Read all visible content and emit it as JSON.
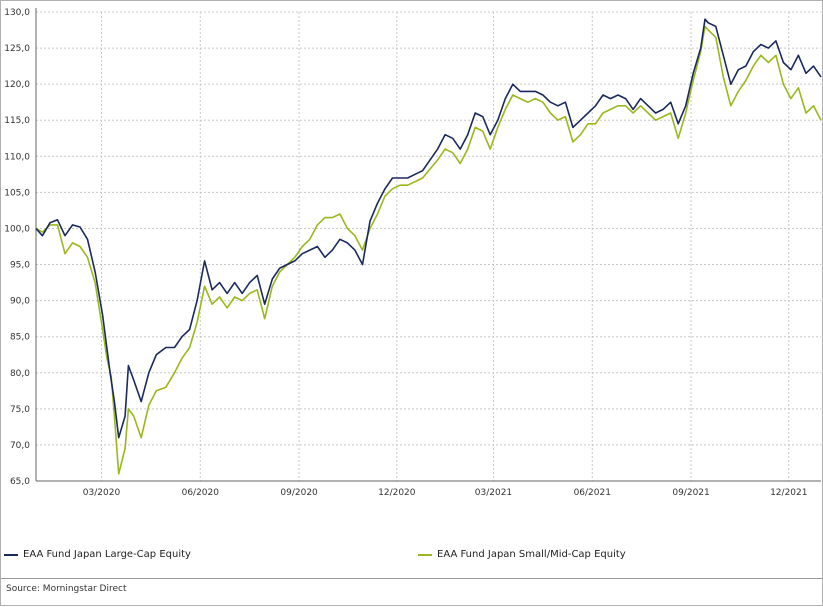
{
  "chart_data": {
    "type": "line",
    "title": "",
    "xlabel": "",
    "ylabel": "",
    "ylim": [
      65,
      130
    ],
    "y_ticks": [
      "65,0",
      "70,0",
      "75,0",
      "80,0",
      "85,0",
      "90,0",
      "95,0",
      "100,0",
      "105,0",
      "110,0",
      "115,0",
      "120,0",
      "125,0",
      "130,0"
    ],
    "x_ticks": [
      "03/2020",
      "06/2020",
      "09/2020",
      "12/2020",
      "03/2021",
      "06/2021",
      "09/2021",
      "12/2021"
    ],
    "x_tick_positions": [
      "2020-03",
      "2020-06",
      "2020-09",
      "2020-12",
      "2021-03",
      "2021-06",
      "2021-09",
      "2021-12"
    ],
    "x_start": "2019-12-31",
    "x_end": "2021-12-31",
    "grid": true,
    "series": [
      {
        "name": "EAA Fund Japan Large-Cap Equity",
        "color": "#1a2a5e",
        "points": [
          [
            "2019-12-31",
            100.0
          ],
          [
            "2020-01-06",
            99.0
          ],
          [
            "2020-01-13",
            100.8
          ],
          [
            "2020-01-20",
            101.2
          ],
          [
            "2020-01-27",
            99.0
          ],
          [
            "2020-02-03",
            100.5
          ],
          [
            "2020-02-10",
            100.2
          ],
          [
            "2020-02-17",
            98.5
          ],
          [
            "2020-02-24",
            94.0
          ],
          [
            "2020-03-02",
            88.0
          ],
          [
            "2020-03-09",
            80.0
          ],
          [
            "2020-03-13",
            76.0
          ],
          [
            "2020-03-17",
            71.0
          ],
          [
            "2020-03-23",
            74.0
          ],
          [
            "2020-03-26",
            81.0
          ],
          [
            "2020-03-31",
            79.0
          ],
          [
            "2020-04-07",
            76.0
          ],
          [
            "2020-04-14",
            80.0
          ],
          [
            "2020-04-21",
            82.5
          ],
          [
            "2020-04-30",
            83.5
          ],
          [
            "2020-05-08",
            83.5
          ],
          [
            "2020-05-15",
            85.0
          ],
          [
            "2020-05-22",
            86.0
          ],
          [
            "2020-05-29",
            90.0
          ],
          [
            "2020-06-05",
            95.5
          ],
          [
            "2020-06-12",
            91.5
          ],
          [
            "2020-06-19",
            92.5
          ],
          [
            "2020-06-26",
            91.0
          ],
          [
            "2020-07-03",
            92.5
          ],
          [
            "2020-07-10",
            91.0
          ],
          [
            "2020-07-17",
            92.5
          ],
          [
            "2020-07-24",
            93.5
          ],
          [
            "2020-07-31",
            89.5
          ],
          [
            "2020-08-07",
            93.0
          ],
          [
            "2020-08-14",
            94.5
          ],
          [
            "2020-08-21",
            95.0
          ],
          [
            "2020-08-28",
            95.5
          ],
          [
            "2020-09-04",
            96.5
          ],
          [
            "2020-09-11",
            97.0
          ],
          [
            "2020-09-18",
            97.5
          ],
          [
            "2020-09-25",
            96.0
          ],
          [
            "2020-10-02",
            97.0
          ],
          [
            "2020-10-09",
            98.5
          ],
          [
            "2020-10-16",
            98.0
          ],
          [
            "2020-10-23",
            97.0
          ],
          [
            "2020-10-30",
            95.0
          ],
          [
            "2020-11-06",
            101.0
          ],
          [
            "2020-11-13",
            103.5
          ],
          [
            "2020-11-20",
            105.5
          ],
          [
            "2020-11-27",
            107.0
          ],
          [
            "2020-12-04",
            107.0
          ],
          [
            "2020-12-11",
            107.0
          ],
          [
            "2020-12-18",
            107.5
          ],
          [
            "2020-12-25",
            108.0
          ],
          [
            "2021-01-08",
            111.0
          ],
          [
            "2021-01-15",
            113.0
          ],
          [
            "2021-01-22",
            112.5
          ],
          [
            "2021-01-29",
            111.0
          ],
          [
            "2021-02-05",
            113.0
          ],
          [
            "2021-02-12",
            116.0
          ],
          [
            "2021-02-19",
            115.5
          ],
          [
            "2021-02-26",
            113.0
          ],
          [
            "2021-03-05",
            115.0
          ],
          [
            "2021-03-12",
            118.0
          ],
          [
            "2021-03-19",
            120.0
          ],
          [
            "2021-03-26",
            119.0
          ],
          [
            "2021-04-02",
            119.0
          ],
          [
            "2021-04-09",
            119.0
          ],
          [
            "2021-04-16",
            118.5
          ],
          [
            "2021-04-23",
            117.5
          ],
          [
            "2021-04-30",
            117.0
          ],
          [
            "2021-05-07",
            117.5
          ],
          [
            "2021-05-14",
            114.0
          ],
          [
            "2021-05-21",
            115.0
          ],
          [
            "2021-05-28",
            116.0
          ],
          [
            "2021-06-04",
            117.0
          ],
          [
            "2021-06-11",
            118.5
          ],
          [
            "2021-06-18",
            118.0
          ],
          [
            "2021-06-25",
            118.5
          ],
          [
            "2021-07-02",
            118.0
          ],
          [
            "2021-07-09",
            116.5
          ],
          [
            "2021-07-16",
            118.0
          ],
          [
            "2021-07-23",
            117.0
          ],
          [
            "2021-07-30",
            116.0
          ],
          [
            "2021-08-06",
            116.5
          ],
          [
            "2021-08-13",
            117.5
          ],
          [
            "2021-08-20",
            114.5
          ],
          [
            "2021-08-27",
            117.0
          ],
          [
            "2021-09-03",
            121.5
          ],
          [
            "2021-09-10",
            125.0
          ],
          [
            "2021-09-14",
            129.0
          ],
          [
            "2021-09-17",
            128.5
          ],
          [
            "2021-09-24",
            128.0
          ],
          [
            "2021-10-01",
            124.0
          ],
          [
            "2021-10-08",
            120.0
          ],
          [
            "2021-10-15",
            122.0
          ],
          [
            "2021-10-22",
            122.5
          ],
          [
            "2021-10-29",
            124.5
          ],
          [
            "2021-11-05",
            125.5
          ],
          [
            "2021-11-12",
            125.0
          ],
          [
            "2021-11-19",
            126.0
          ],
          [
            "2021-11-26",
            123.0
          ],
          [
            "2021-12-03",
            122.0
          ],
          [
            "2021-12-10",
            124.0
          ],
          [
            "2021-12-17",
            121.5
          ],
          [
            "2021-12-24",
            122.5
          ],
          [
            "2021-12-31",
            121.0
          ]
        ]
      },
      {
        "name": "EAA Fund Japan Small/Mid-Cap Equity",
        "color": "#9ab81c",
        "points": [
          [
            "2019-12-31",
            100.0
          ],
          [
            "2020-01-06",
            99.5
          ],
          [
            "2020-01-13",
            100.5
          ],
          [
            "2020-01-20",
            100.5
          ],
          [
            "2020-01-27",
            96.5
          ],
          [
            "2020-02-03",
            98.0
          ],
          [
            "2020-02-10",
            97.5
          ],
          [
            "2020-02-17",
            96.0
          ],
          [
            "2020-02-24",
            92.5
          ],
          [
            "2020-03-02",
            86.0
          ],
          [
            "2020-03-06",
            82.0
          ],
          [
            "2020-03-10",
            79.5
          ],
          [
            "2020-03-13",
            74.0
          ],
          [
            "2020-03-17",
            66.0
          ],
          [
            "2020-03-23",
            69.5
          ],
          [
            "2020-03-26",
            75.0
          ],
          [
            "2020-03-31",
            74.0
          ],
          [
            "2020-04-07",
            71.0
          ],
          [
            "2020-04-14",
            75.5
          ],
          [
            "2020-04-21",
            77.5
          ],
          [
            "2020-04-30",
            78.0
          ],
          [
            "2020-05-08",
            80.0
          ],
          [
            "2020-05-15",
            82.0
          ],
          [
            "2020-05-22",
            83.5
          ],
          [
            "2020-05-29",
            87.0
          ],
          [
            "2020-06-05",
            92.0
          ],
          [
            "2020-06-12",
            89.5
          ],
          [
            "2020-06-19",
            90.5
          ],
          [
            "2020-06-26",
            89.0
          ],
          [
            "2020-07-03",
            90.5
          ],
          [
            "2020-07-10",
            90.0
          ],
          [
            "2020-07-17",
            91.0
          ],
          [
            "2020-07-24",
            91.5
          ],
          [
            "2020-07-31",
            87.5
          ],
          [
            "2020-08-07",
            92.0
          ],
          [
            "2020-08-14",
            94.0
          ],
          [
            "2020-08-21",
            95.0
          ],
          [
            "2020-08-28",
            96.0
          ],
          [
            "2020-09-04",
            97.5
          ],
          [
            "2020-09-11",
            98.5
          ],
          [
            "2020-09-18",
            100.5
          ],
          [
            "2020-09-25",
            101.5
          ],
          [
            "2020-10-02",
            101.5
          ],
          [
            "2020-10-09",
            102.0
          ],
          [
            "2020-10-16",
            100.0
          ],
          [
            "2020-10-23",
            99.0
          ],
          [
            "2020-10-30",
            97.0
          ],
          [
            "2020-11-06",
            100.0
          ],
          [
            "2020-11-13",
            102.0
          ],
          [
            "2020-11-20",
            104.5
          ],
          [
            "2020-11-27",
            105.5
          ],
          [
            "2020-12-04",
            106.0
          ],
          [
            "2020-12-11",
            106.0
          ],
          [
            "2020-12-18",
            106.5
          ],
          [
            "2020-12-25",
            107.0
          ],
          [
            "2021-01-08",
            109.5
          ],
          [
            "2021-01-15",
            111.0
          ],
          [
            "2021-01-22",
            110.5
          ],
          [
            "2021-01-29",
            109.0
          ],
          [
            "2021-02-05",
            111.0
          ],
          [
            "2021-02-12",
            114.0
          ],
          [
            "2021-02-19",
            113.5
          ],
          [
            "2021-02-26",
            111.0
          ],
          [
            "2021-03-05",
            114.0
          ],
          [
            "2021-03-12",
            116.5
          ],
          [
            "2021-03-19",
            118.5
          ],
          [
            "2021-03-26",
            118.0
          ],
          [
            "2021-04-02",
            117.5
          ],
          [
            "2021-04-09",
            118.0
          ],
          [
            "2021-04-16",
            117.5
          ],
          [
            "2021-04-23",
            116.0
          ],
          [
            "2021-04-30",
            115.0
          ],
          [
            "2021-05-07",
            115.5
          ],
          [
            "2021-05-14",
            112.0
          ],
          [
            "2021-05-21",
            113.0
          ],
          [
            "2021-05-28",
            114.5
          ],
          [
            "2021-06-04",
            114.5
          ],
          [
            "2021-06-11",
            116.0
          ],
          [
            "2021-06-18",
            116.5
          ],
          [
            "2021-06-25",
            117.0
          ],
          [
            "2021-07-02",
            117.0
          ],
          [
            "2021-07-09",
            116.0
          ],
          [
            "2021-07-16",
            117.0
          ],
          [
            "2021-07-23",
            116.0
          ],
          [
            "2021-07-30",
            115.0
          ],
          [
            "2021-08-06",
            115.5
          ],
          [
            "2021-08-13",
            116.0
          ],
          [
            "2021-08-20",
            112.5
          ],
          [
            "2021-08-27",
            116.0
          ],
          [
            "2021-09-03",
            120.5
          ],
          [
            "2021-09-10",
            124.5
          ],
          [
            "2021-09-14",
            128.0
          ],
          [
            "2021-09-17",
            127.5
          ],
          [
            "2021-09-24",
            126.5
          ],
          [
            "2021-10-01",
            121.0
          ],
          [
            "2021-10-08",
            117.0
          ],
          [
            "2021-10-15",
            119.0
          ],
          [
            "2021-10-22",
            120.5
          ],
          [
            "2021-10-29",
            122.5
          ],
          [
            "2021-11-05",
            124.0
          ],
          [
            "2021-11-12",
            123.0
          ],
          [
            "2021-11-19",
            124.0
          ],
          [
            "2021-11-26",
            120.0
          ],
          [
            "2021-12-03",
            118.0
          ],
          [
            "2021-12-10",
            119.5
          ],
          [
            "2021-12-17",
            116.0
          ],
          [
            "2021-12-24",
            117.0
          ],
          [
            "2021-12-31",
            115.0
          ]
        ]
      }
    ],
    "legend_position": "bottom"
  },
  "legend": {
    "large_cap": "EAA Fund Japan Large-Cap Equity",
    "small_mid_cap": "EAA Fund Japan Small/Mid-Cap Equity"
  },
  "colors": {
    "large_cap": "#1a2a5e",
    "small_mid_cap": "#9ab81c",
    "grid": "#c8c8c8",
    "axis": "#666666"
  },
  "source": "Source: Morningstar Direct"
}
